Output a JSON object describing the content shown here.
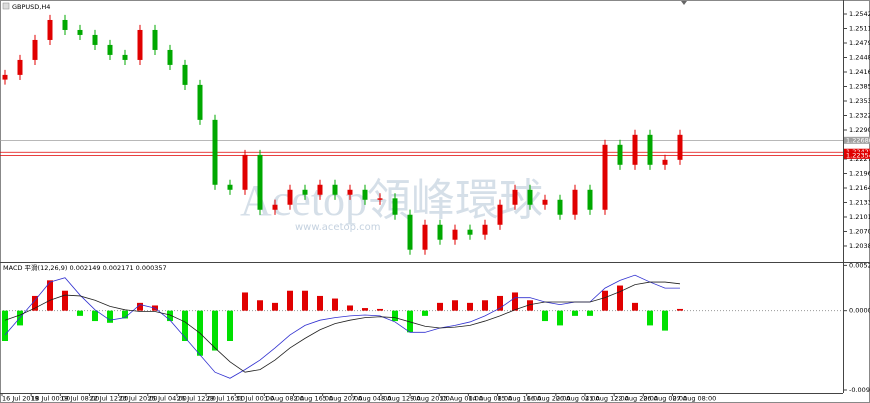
{
  "chart_data": [
    {
      "type": "candlestick",
      "title": "GBPUSD,H4",
      "watermark": "Acetop領峰環球",
      "watermark_url": "www.acetop.com",
      "ylim": [
        1.20037,
        1.25729
      ],
      "yticks": [
        1.25425,
        {
          "value": 1.2511,
          "label": "1.25110"
        },
        1.24795,
        {
          "value": 1.2448,
          "label": "1.24480"
        },
        1.24165,
        {
          "value": 1.2385,
          "label": "1.23850"
        },
        1.23535,
        {
          "value": 1.2322,
          "label": "1.23220"
        },
        1.22905,
        1.22275,
        {
          "value": 1.2196,
          "label": "1.21960"
        },
        1.21645,
        {
          "value": 1.2133,
          "label": "1.21330"
        },
        1.21015,
        {
          "value": 1.207,
          "label": "1.20700"
        },
        1.20385
      ],
      "up_color": "#e00000",
      "down_color": "#00a800",
      "hlines": [
        {
          "value": 1.2268,
          "label": "1.22680",
          "color": "#a0a0a0"
        },
        {
          "value": 1.22422,
          "label": "1.22422",
          "color": "#e00000"
        },
        {
          "value": 1.22354,
          "label": "1.22354",
          "color": "#e00000"
        }
      ],
      "x_labels": [
        "16 Jul 2019",
        "18 Jul 00:00",
        "19 Jul 08:00",
        "22 Jul 12:00",
        "23 Jul 20:00",
        "25 Jul 04:00",
        "26 Jul 12:00",
        "29 Jul 16:00",
        "31 Jul 00:00",
        "1 Aug 08:00",
        "2 Aug 16:00",
        "5 Aug 20:00",
        "7 Aug 04:00",
        "8 Aug 12:00",
        "9 Aug 20:00",
        "13 Aug 00:00",
        "14 Aug 08:00",
        "15 Aug 16:00",
        "16 Aug 20:00",
        "20 Aug 04:00",
        "21 Aug 12:00",
        "22 Aug 20:00",
        "26 Aug 00:00",
        "27 Aug 08:00"
      ],
      "candles": [
        [
          1.24,
          1.24212,
          1.2389,
          1.24102
        ],
        [
          1.24102,
          1.24537,
          1.23992,
          1.24427
        ],
        [
          1.24427,
          1.24971,
          1.24317,
          1.24861
        ],
        [
          1.24861,
          1.25405,
          1.24751,
          1.25295
        ],
        [
          1.25295,
          1.25405,
          1.24968,
          1.25078
        ],
        [
          1.25078,
          1.25188,
          1.2486,
          1.2497
        ],
        [
          1.2497,
          1.2508,
          1.24643,
          1.24753
        ],
        [
          1.24753,
          1.24863,
          1.24426,
          1.24536
        ],
        [
          1.24536,
          1.24646,
          1.24317,
          1.24427
        ],
        [
          1.24427,
          1.25188,
          1.24317,
          1.25078
        ],
        [
          1.25078,
          1.25188,
          1.24534,
          1.24644
        ],
        [
          1.24644,
          1.24754,
          1.24209,
          1.24319
        ],
        [
          1.24319,
          1.24429,
          1.23775,
          1.23885
        ],
        [
          1.23885,
          1.23995,
          1.23015,
          1.23125
        ],
        [
          1.23125,
          1.23235,
          1.21605,
          1.21715
        ],
        [
          1.21715,
          1.21825,
          1.21496,
          1.21606
        ],
        [
          1.21606,
          1.22474,
          1.21496,
          1.22364
        ],
        [
          1.22364,
          1.22474,
          1.21062,
          1.21172
        ],
        [
          1.21172,
          1.21391,
          1.21062,
          1.21281
        ],
        [
          1.21281,
          1.21716,
          1.21171,
          1.21606
        ],
        [
          1.21606,
          1.21716,
          1.21388,
          1.21498
        ],
        [
          1.21498,
          1.21825,
          1.21388,
          1.21715
        ],
        [
          1.21715,
          1.21825,
          1.21388,
          1.21498
        ],
        [
          1.21498,
          1.21716,
          1.21388,
          1.21606
        ],
        [
          1.21606,
          1.21716,
          1.21279,
          1.21389
        ],
        [
          1.21389,
          1.2153,
          1.21279,
          1.2142
        ],
        [
          1.2142,
          1.2153,
          1.20954,
          1.21064
        ],
        [
          1.21064,
          1.21174,
          1.20194,
          1.20304
        ],
        [
          1.20304,
          1.20956,
          1.20194,
          1.20846
        ],
        [
          1.20846,
          1.20956,
          1.20411,
          1.20521
        ],
        [
          1.20521,
          1.20849,
          1.20411,
          1.20739
        ],
        [
          1.20739,
          1.20849,
          1.2052,
          1.2063
        ],
        [
          1.2063,
          1.20956,
          1.2052,
          1.20846
        ],
        [
          1.20846,
          1.21391,
          1.20736,
          1.21281
        ],
        [
          1.21281,
          1.21716,
          1.21171,
          1.21606
        ],
        [
          1.21606,
          1.21716,
          1.21171,
          1.21281
        ],
        [
          1.21281,
          1.21499,
          1.21171,
          1.21389
        ],
        [
          1.21389,
          1.21499,
          1.20954,
          1.21064
        ],
        [
          1.21064,
          1.21716,
          1.20954,
          1.21606
        ],
        [
          1.21606,
          1.21716,
          1.21062,
          1.21172
        ],
        [
          1.21172,
          1.22693,
          1.21062,
          1.22583
        ],
        [
          1.22583,
          1.22693,
          1.22039,
          1.22149
        ],
        [
          1.22149,
          1.2291,
          1.22039,
          1.228
        ],
        [
          1.228,
          1.2291,
          1.22039,
          1.22149
        ],
        [
          1.22149,
          1.22367,
          1.22039,
          1.22257
        ],
        [
          1.22257,
          1.2291,
          1.22147,
          1.228
        ]
      ]
    },
    {
      "type": "macd",
      "label": "MACD 平滑(12,26,9) 0.002149 0.002171 0.000357",
      "ylim": [
        -0.0095,
        0.0055
      ],
      "yticks": [
        0.005224,
        {
          "value": 0,
          "label": "0.000000"
        },
        -0.009152
      ],
      "pos_color": "#e00000",
      "neg_color": "#00e000",
      "histogram": [
        -0.0035,
        -0.0017,
        0.0017,
        0.0035,
        0.0023,
        -0.0006,
        -0.0012,
        -0.0014,
        -0.0009,
        0.0009,
        0.0006,
        -0.0012,
        -0.0035,
        -0.0052,
        -0.0046,
        -0.0035,
        0.0021,
        0.0012,
        0.0009,
        0.0023,
        0.0023,
        0.0017,
        0.0014,
        0.0006,
        0.0003,
        0.0002,
        -0.0012,
        -0.0025,
        -0.0006,
        0.0009,
        0.0012,
        0.0009,
        0.0012,
        0.0017,
        0.0021,
        0.0012,
        -0.0012,
        -0.0017,
        -0.0006,
        -0.0006,
        0.0023,
        0.0029,
        0.0009,
        -0.0017,
        -0.0023,
        0.0002
      ],
      "lines": [
        {
          "color": "#3030d0",
          "values": [
            -0.0028,
            -0.0008,
            0.0012,
            0.0033,
            0.0038,
            0.0018,
            0.0001,
            -0.0011,
            -0.0008,
            0.0007,
            0.0003,
            -0.0011,
            -0.0031,
            -0.0051,
            -0.0071,
            -0.0078,
            -0.0068,
            -0.0057,
            -0.0043,
            -0.0028,
            -0.0017,
            -0.0011,
            -0.0008,
            -0.0006,
            -0.0005,
            -0.0006,
            -0.0013,
            -0.0025,
            -0.0025,
            -0.002,
            -0.0017,
            -0.0013,
            -0.0006,
            0.0003,
            0.0015,
            0.0015,
            0.001,
            0.0007,
            0.001,
            0.001,
            0.0026,
            0.0035,
            0.0041,
            0.0033,
            0.0026,
            0.0026
          ]
        },
        {
          "color": "#202020",
          "values": [
            -0.0011,
            -0.0005,
            0.0003,
            0.0012,
            0.0018,
            0.0017,
            0.0012,
            0.0005,
            0.0001,
            -0.0001,
            -0.0001,
            -0.0005,
            -0.0013,
            -0.0026,
            -0.0043,
            -0.0059,
            -0.0071,
            -0.0068,
            -0.0057,
            -0.0043,
            -0.0032,
            -0.0022,
            -0.0015,
            -0.0011,
            -0.0008,
            -0.0007,
            -0.0008,
            -0.0013,
            -0.0018,
            -0.002,
            -0.0019,
            -0.0017,
            -0.0012,
            -0.0006,
            0.0001,
            0.0007,
            0.001,
            0.001,
            0.001,
            0.001,
            0.0015,
            0.0022,
            0.003,
            0.0033,
            0.0033,
            0.0031
          ]
        }
      ]
    }
  ]
}
